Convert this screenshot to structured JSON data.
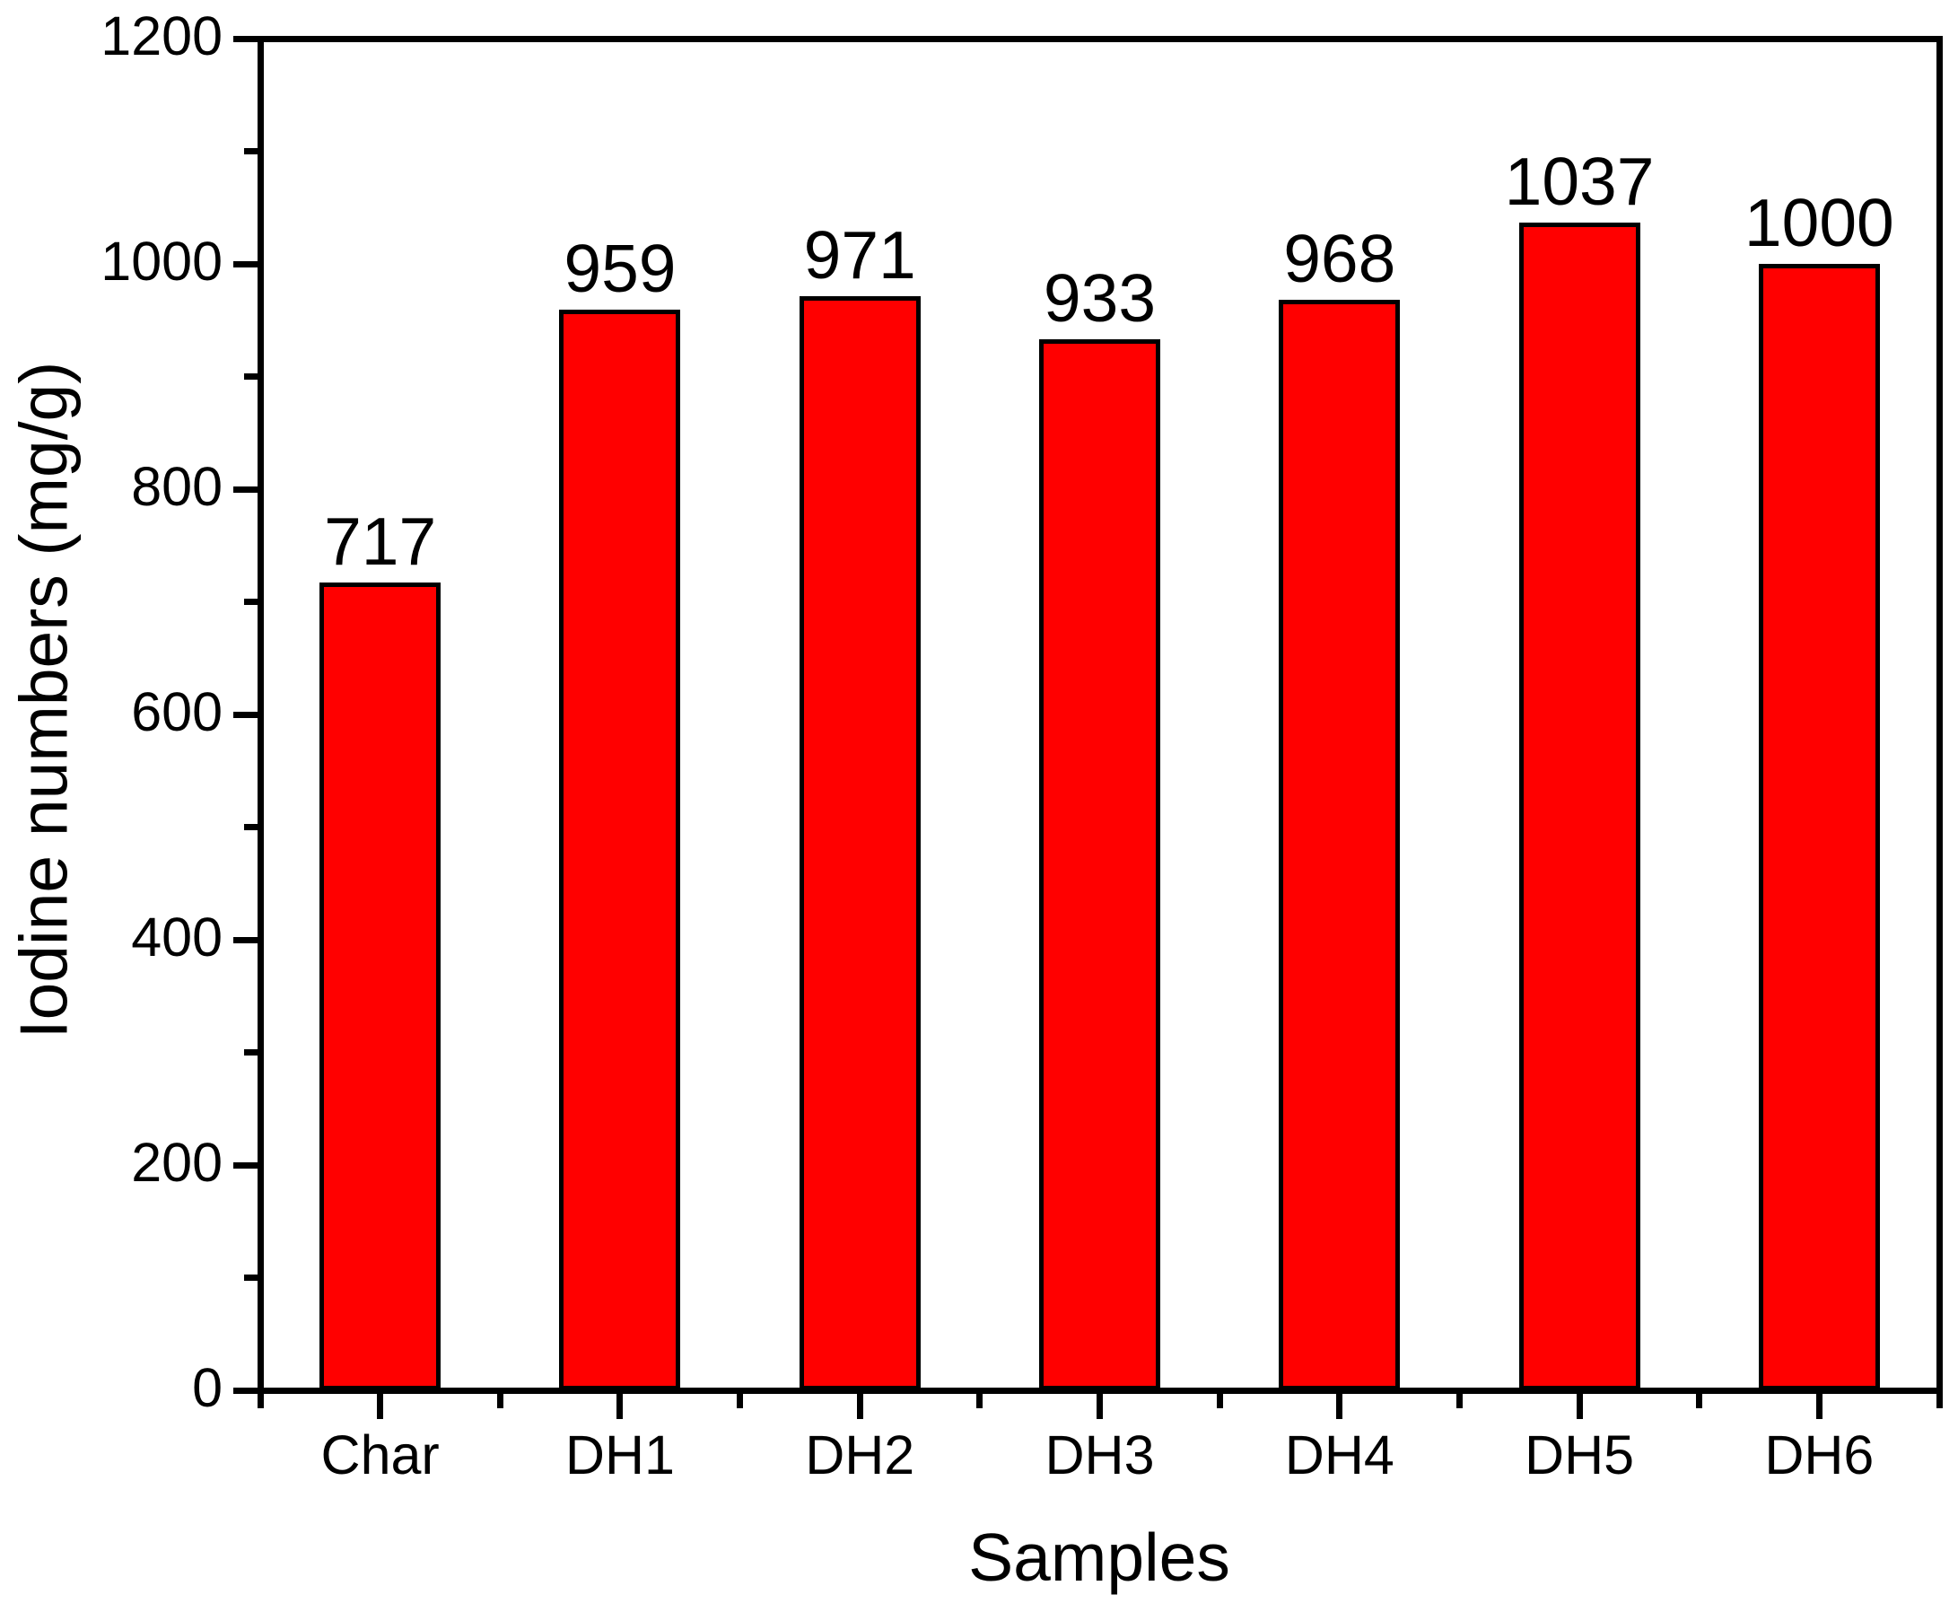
{
  "chart_data": {
    "type": "bar",
    "title": "",
    "xlabel": "Samples",
    "ylabel": "Iodine numbers (mg/g)",
    "categories": [
      "Char",
      "DH1",
      "DH2",
      "DH3",
      "DH4",
      "DH5",
      "DH6"
    ],
    "values": [
      717,
      959,
      971,
      933,
      968,
      1037,
      1000
    ],
    "bar_value_labels": [
      "717",
      "959",
      "971",
      "933",
      "968",
      "1037",
      "1000"
    ],
    "ylim": [
      0,
      1200
    ],
    "y_major_tick_step": 200,
    "y_minor_tick_step": 100,
    "y_tick_labels": [
      "0",
      "200",
      "400",
      "600",
      "800",
      "1000",
      "1200"
    ],
    "grid": false,
    "legend": "none",
    "bar_fill_color": "#ff0000",
    "bar_edge_color": "#000000",
    "axis_color": "#000000",
    "text_color": "#000000",
    "background_color": "#ffffff"
  }
}
